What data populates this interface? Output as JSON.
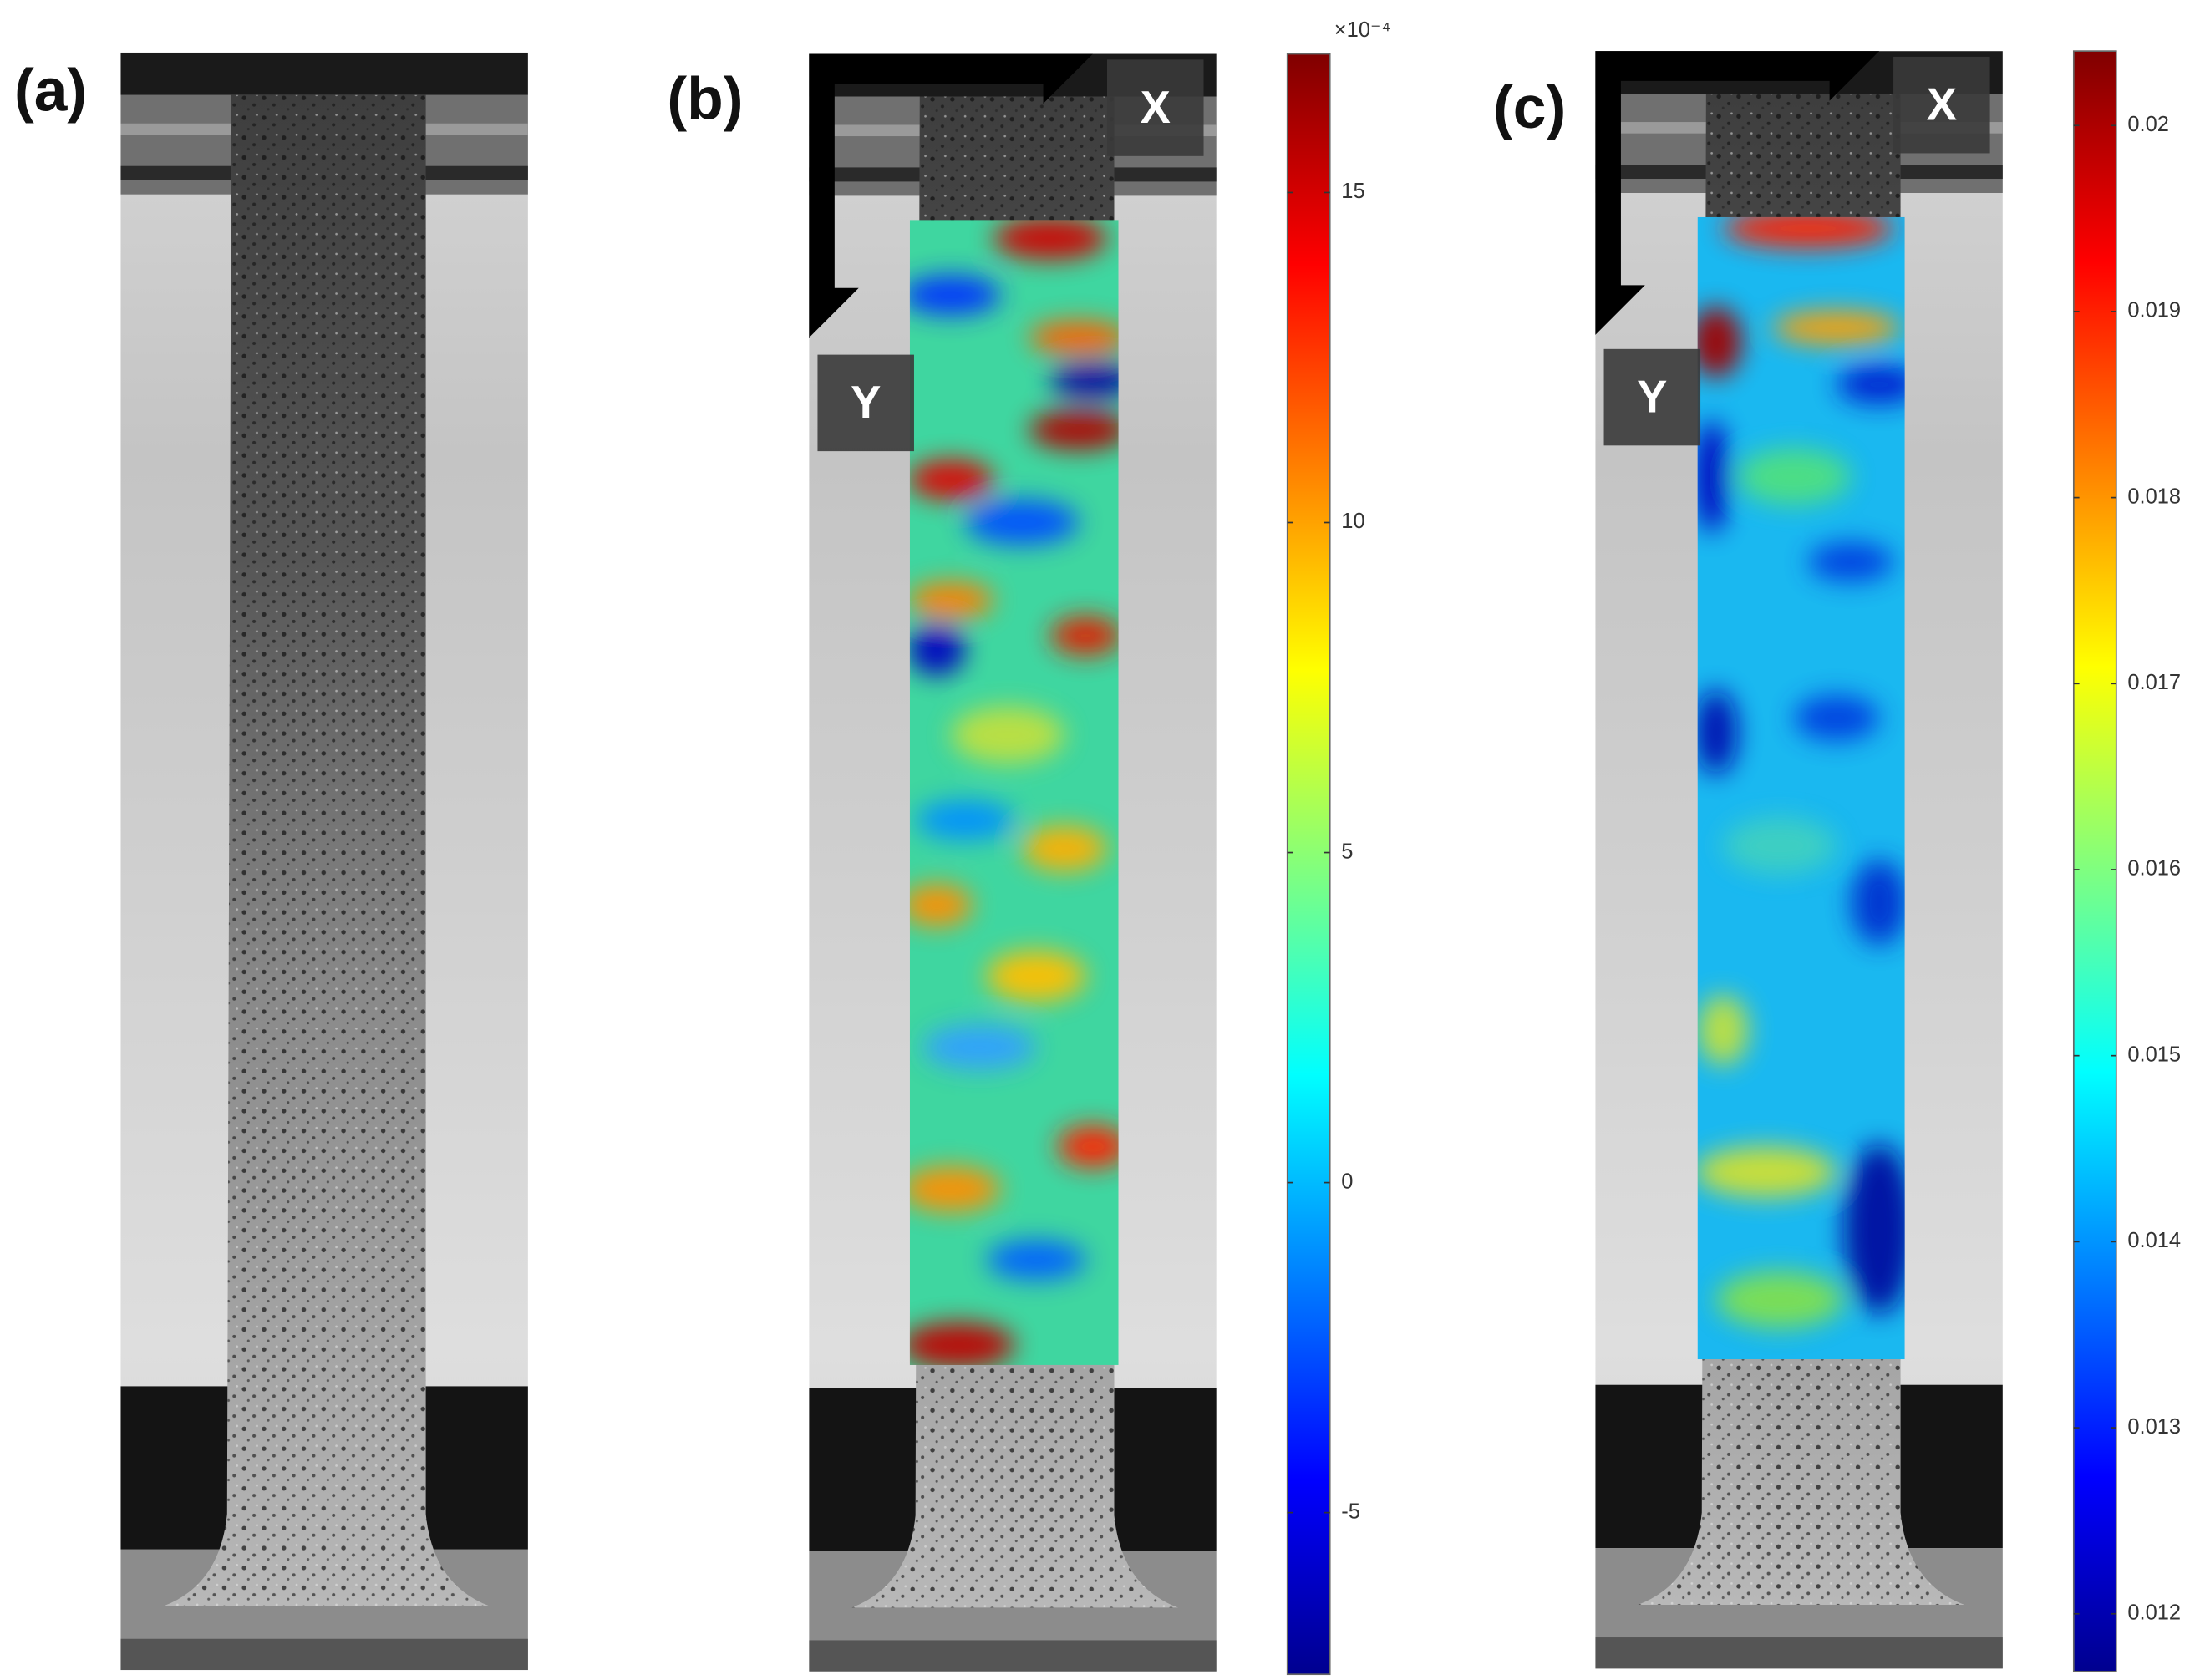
{
  "panels": [
    {
      "label": "(a)"
    },
    {
      "label": "(b)",
      "axis_x": "X",
      "axis_y": "Y",
      "colorbar": {
        "multiplier": "×10⁻⁴",
        "lim": [
          -7.45,
          17.1
        ],
        "ticks": [
          -5,
          0,
          5,
          10,
          15
        ]
      }
    },
    {
      "label": "(c)",
      "axis_x": "X",
      "axis_y": "Y",
      "colorbar": {
        "lim": [
          0.01169,
          0.0204
        ],
        "ticks": [
          0.012,
          0.013,
          0.014,
          0.015,
          0.016,
          0.017,
          0.018,
          0.019,
          0.02
        ]
      }
    }
  ]
}
